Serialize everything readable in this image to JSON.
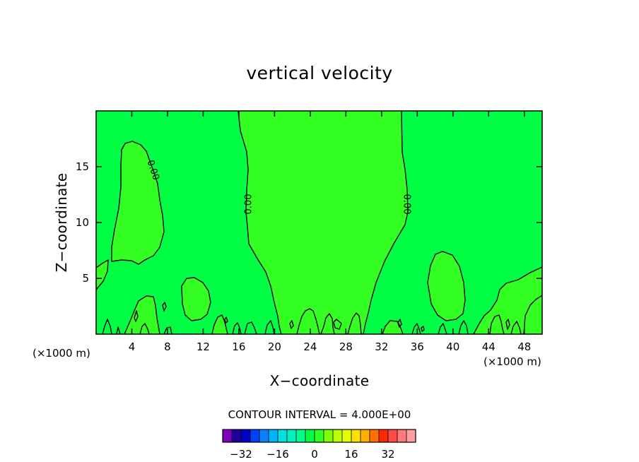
{
  "chart_data": {
    "type": "heatmap",
    "title": "vertical velocity",
    "xlabel": "X−coordinate",
    "ylabel": "Z−coordinate",
    "x_unit_label_left": "(×1000 m)",
    "x_unit_label_right": "(×1000 m)",
    "xlim": [
      0,
      50
    ],
    "ylim": [
      0,
      20
    ],
    "x_ticks": [
      4,
      8,
      12,
      16,
      20,
      24,
      28,
      32,
      36,
      40,
      44,
      48
    ],
    "x_tick_labels": [
      "4",
      "8",
      "12",
      "16",
      "20",
      "24",
      "28",
      "32",
      "36",
      "40",
      "44",
      "48"
    ],
    "y_ticks": [
      5,
      10,
      15
    ],
    "y_tick_labels": [
      "5",
      "10",
      "15"
    ],
    "contour_interval_text": "CONTOUR INTERVAL = 4.000E+00",
    "contour_interval": 4.0,
    "contour_labels": [
      {
        "text": "0.00",
        "x": 6.2,
        "z": 14.3
      },
      {
        "text": "0.00",
        "x": 17.2,
        "z": 11.2
      },
      {
        "text": "0.00",
        "x": 34.5,
        "z": 11.2
      }
    ],
    "background_color": "#00ff44",
    "positive_region_color": "#33ff22",
    "positive_regions": [
      {
        "label": "left upper cell",
        "x_range": [
          2.3,
          7.5
        ],
        "z_range": [
          6.5,
          17.2
        ]
      },
      {
        "label": "central updraft",
        "x_range": [
          15.5,
          34.5
        ],
        "z_range": [
          0,
          20
        ]
      },
      {
        "label": "left lower cell",
        "x_range": [
          9.6,
          13.2
        ],
        "z_range": [
          1.5,
          5
        ]
      },
      {
        "label": "right cell",
        "x_range": [
          37.4,
          41.2
        ],
        "z_range": [
          1.2,
          7.4
        ]
      },
      {
        "label": "right edge cell",
        "x_range": [
          43.2,
          50
        ],
        "z_range": [
          1.8,
          6.0
        ]
      },
      {
        "label": "left edge cell",
        "x_range": [
          0,
          1.4
        ],
        "z_range": [
          4.0,
          6.4
        ]
      }
    ],
    "colorbar": {
      "colors": [
        "#7f00bf",
        "#1f0099",
        "#0000c8",
        "#0040ff",
        "#0a80ff",
        "#00b3ff",
        "#00e1e1",
        "#00f0c2",
        "#00ff8c",
        "#00ff44",
        "#33ff22",
        "#7cff00",
        "#bbff00",
        "#e6ff00",
        "#ffe000",
        "#ffb000",
        "#ff7000",
        "#ff2a00",
        "#ff4a4a",
        "#ff7a7a",
        "#ff9f9f"
      ],
      "tick_labels": [
        "−32",
        "−16",
        "0",
        "16",
        "32"
      ],
      "tick_values": [
        -32,
        -16,
        0,
        16,
        32
      ],
      "range": [
        -40,
        44
      ]
    }
  }
}
